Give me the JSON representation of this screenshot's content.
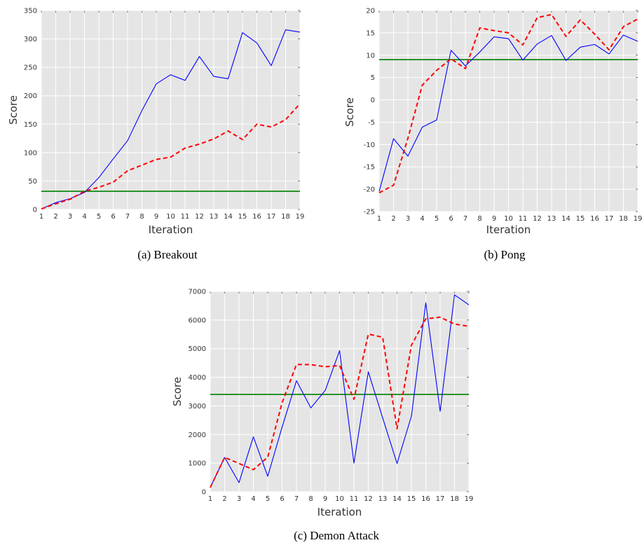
{
  "chart_data": [
    {
      "type": "line",
      "caption": "(a) Breakout",
      "xlabel": "Iteration",
      "ylabel": "Score",
      "xlim": [
        1,
        19
      ],
      "ylim": [
        0,
        350
      ],
      "x_ticks": [
        1,
        2,
        3,
        4,
        5,
        6,
        7,
        8,
        9,
        10,
        11,
        12,
        13,
        14,
        15,
        16,
        17,
        18,
        19
      ],
      "y_ticks": [
        0,
        50,
        100,
        150,
        200,
        250,
        300,
        350
      ],
      "grid": true,
      "x": [
        1,
        2,
        3,
        4,
        5,
        6,
        7,
        8,
        9,
        10,
        11,
        12,
        13,
        14,
        15,
        16,
        17,
        18,
        19
      ],
      "series": [
        {
          "style": "solid",
          "color": "#0000ff",
          "values": [
            1,
            12,
            19,
            30,
            56,
            89,
            121,
            174,
            221,
            237,
            227,
            269,
            234,
            230,
            311,
            293,
            253,
            316,
            312
          ]
        },
        {
          "style": "dashed",
          "color": "#ff0000",
          "values": [
            1,
            10,
            18,
            32,
            39,
            48,
            68,
            78,
            88,
            92,
            108,
            115,
            124,
            138,
            123,
            150,
            145,
            158,
            186
          ]
        }
      ],
      "hlines": [
        {
          "value": 32,
          "color": "#008000"
        }
      ]
    },
    {
      "type": "line",
      "caption": "(b) Pong",
      "xlabel": "Iteration",
      "ylabel": "Score",
      "xlim": [
        1,
        19
      ],
      "ylim": [
        -25,
        20
      ],
      "x_ticks": [
        1,
        2,
        3,
        4,
        5,
        6,
        7,
        8,
        9,
        10,
        11,
        12,
        13,
        14,
        15,
        16,
        17,
        18,
        19
      ],
      "y_ticks": [
        -25,
        -20,
        -15,
        -10,
        -5,
        0,
        5,
        10,
        15,
        20
      ],
      "grid": true,
      "x": [
        1,
        2,
        3,
        4,
        5,
        6,
        7,
        8,
        9,
        10,
        11,
        12,
        13,
        14,
        15,
        16,
        17,
        18,
        19
      ],
      "series": [
        {
          "style": "solid",
          "color": "#0000ff",
          "values": [
            -20.5,
            -8.7,
            -12.6,
            -6.1,
            -4.5,
            11.1,
            7.6,
            10.7,
            14.1,
            13.7,
            8.9,
            12.5,
            14.4,
            8.8,
            11.8,
            12.4,
            10.3,
            14.5,
            13.1
          ]
        },
        {
          "style": "dashed",
          "color": "#ff0000",
          "values": [
            -20.8,
            -19.1,
            -8.6,
            3.3,
            6.6,
            9.2,
            7.0,
            16.1,
            15.5,
            15.0,
            12.3,
            18.4,
            19.1,
            14.2,
            17.9,
            14.7,
            11.2,
            16.4,
            18.1
          ]
        }
      ],
      "hlines": [
        {
          "value": 9,
          "color": "#008000"
        }
      ]
    },
    {
      "type": "line",
      "caption": "(c) Demon Attack",
      "xlabel": "Iteration",
      "ylabel": "Score",
      "xlim": [
        1,
        19
      ],
      "ylim": [
        0,
        7000
      ],
      "x_ticks": [
        1,
        2,
        3,
        4,
        5,
        6,
        7,
        8,
        9,
        10,
        11,
        12,
        13,
        14,
        15,
        16,
        17,
        18,
        19
      ],
      "y_ticks": [
        0,
        1000,
        2000,
        3000,
        4000,
        5000,
        6000,
        7000
      ],
      "grid": true,
      "x": [
        1,
        2,
        3,
        4,
        5,
        6,
        7,
        8,
        9,
        10,
        11,
        12,
        13,
        14,
        15,
        16,
        17,
        18,
        19
      ],
      "series": [
        {
          "style": "solid",
          "color": "#0000ff",
          "values": [
            150,
            1200,
            320,
            1920,
            540,
            2260,
            3880,
            2930,
            3540,
            4930,
            1000,
            4190,
            2580,
            990,
            2640,
            6600,
            2810,
            6880,
            6530
          ]
        },
        {
          "style": "dashed",
          "color": "#ff0000",
          "values": [
            150,
            1200,
            990,
            770,
            1210,
            3110,
            4450,
            4440,
            4370,
            4410,
            3230,
            5510,
            5400,
            2200,
            5120,
            6040,
            6100,
            5860,
            5780
          ]
        }
      ],
      "hlines": [
        {
          "value": 3400,
          "color": "#008000"
        }
      ]
    }
  ]
}
